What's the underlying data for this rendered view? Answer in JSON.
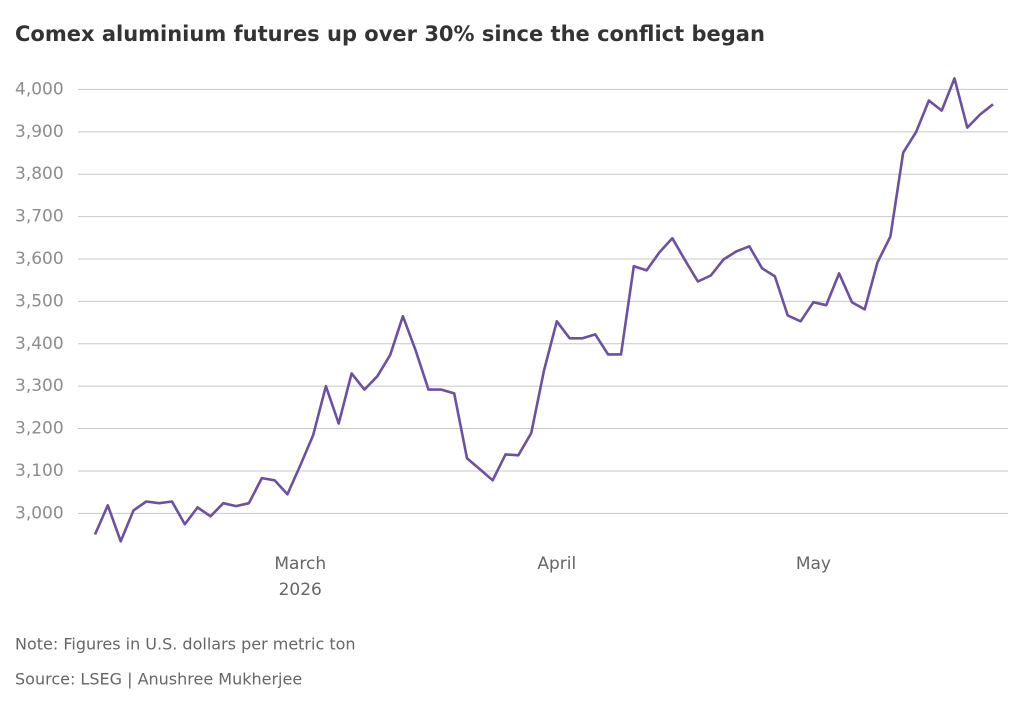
{
  "chart_data": {
    "type": "line",
    "title": "Comex aluminium futures up over 30% since the conflict began",
    "note": "Note: Figures in U.S. dollars per metric ton",
    "source": "Source: LSEG | Anushree Mukherjee",
    "categories": [
      null,
      null,
      null,
      null,
      null,
      null,
      null,
      null,
      null,
      null,
      null,
      null,
      null,
      null,
      null,
      null,
      "March",
      null,
      null,
      null,
      null,
      null,
      null,
      null,
      null,
      null,
      null,
      null,
      null,
      null,
      null,
      null,
      null,
      null,
      null,
      null,
      "April",
      null,
      null,
      null,
      null,
      null,
      null,
      null,
      null,
      null,
      null,
      null,
      null,
      null,
      null,
      null,
      null,
      null,
      null,
      null,
      "May",
      null,
      null,
      null,
      null,
      null,
      null,
      null,
      null,
      null,
      null,
      null,
      null,
      null,
      null
    ],
    "category_year": "2026",
    "series": [
      {
        "name": "Comex aluminium",
        "color": "#6b50a3",
        "values": [
          2950,
          3019,
          2934,
          3007,
          3028,
          3024,
          3028,
          2974,
          3014,
          2993,
          3024,
          3017,
          3024,
          3083,
          3078,
          3045,
          3113,
          3184,
          3300,
          3212,
          3330,
          3292,
          3323,
          3373,
          3465,
          3384,
          3292,
          3292,
          3283,
          3130,
          3104,
          3078,
          3139,
          3137,
          3189,
          3337,
          3453,
          3413,
          3413,
          3422,
          3375,
          3375,
          3583,
          3573,
          3616,
          3649,
          3597,
          3547,
          3561,
          3599,
          3618,
          3630,
          3578,
          3559,
          3467,
          3453,
          3498,
          3491,
          3566,
          3498,
          3481,
          3592,
          3653,
          3851,
          3899,
          3974,
          3950,
          4026,
          3910,
          3941,
          3965
        ]
      }
    ],
    "ylim": [
      2930,
      4060
    ],
    "yticks": [
      {
        "value": 3000,
        "label": "3,000"
      },
      {
        "value": 3100,
        "label": "3,100"
      },
      {
        "value": 3200,
        "label": "3,200"
      },
      {
        "value": 3300,
        "label": "3,300"
      },
      {
        "value": 3400,
        "label": "3,400"
      },
      {
        "value": 3500,
        "label": "3,500"
      },
      {
        "value": 3600,
        "label": "3,600"
      },
      {
        "value": 3700,
        "label": "3,700"
      },
      {
        "value": 3800,
        "label": "3,800"
      },
      {
        "value": 3900,
        "label": "3,900"
      },
      {
        "value": 4000,
        "label": "4,000"
      }
    ],
    "grid": true
  }
}
